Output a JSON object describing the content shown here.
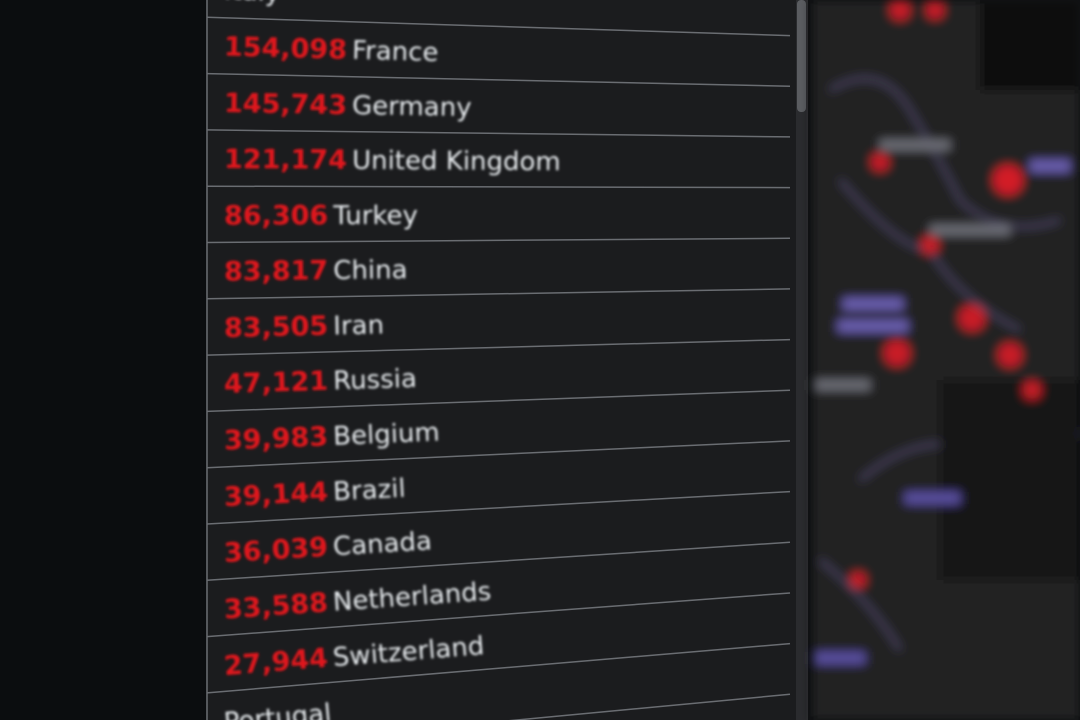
{
  "rows": [
    {
      "country": "Italy"
    },
    {
      "count": "154,098",
      "country": "France"
    },
    {
      "count": "145,743",
      "country": "Germany"
    },
    {
      "count": "121,174",
      "country": "United Kingdom"
    },
    {
      "count": "86,306",
      "country": "Turkey"
    },
    {
      "count": "83,817",
      "country": "China"
    },
    {
      "count": "83,505",
      "country": "Iran"
    },
    {
      "count": "47,121",
      "country": "Russia"
    },
    {
      "count": "39,983",
      "country": "Belgium"
    },
    {
      "count": "39,144",
      "country": "Brazil"
    },
    {
      "count": "36,039",
      "country": "Canada"
    },
    {
      "count": "33,588",
      "country": "Netherlands"
    },
    {
      "count": "27,944",
      "country": "Switzerland"
    },
    {
      "country": "Portugal"
    }
  ]
}
